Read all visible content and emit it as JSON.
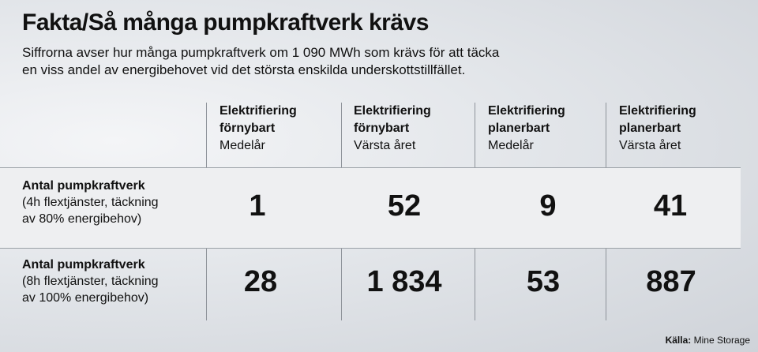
{
  "title": "Fakta/Så många pumpkraftverk krävs",
  "subtitle_line1": "Siffrorna avser hur många pumpkraftverk om 1 090 MWh som krävs för att täcka",
  "subtitle_line2": "en viss andel av energibehovet vid det största enskilda underskottstillfället.",
  "chart_data": {
    "type": "table",
    "columns": [
      {
        "line1": "Elektrifiering",
        "line2": "förnybart",
        "line3": "Medelår"
      },
      {
        "line1": "Elektrifiering",
        "line2": "förnybart",
        "line3": "Värsta året"
      },
      {
        "line1": "Elektrifiering",
        "line2": "planerbart",
        "line3": "Medelår"
      },
      {
        "line1": "Elektrifiering",
        "line2": "planerbart",
        "line3": "Värsta året"
      }
    ],
    "rows": [
      {
        "label": "Antal pumpkraftverk",
        "note1": "(4h flextjänster, täckning",
        "note2": "av 80% energibehov)",
        "values": [
          "1",
          "52",
          "9",
          "41"
        ]
      },
      {
        "label": "Antal pumpkraftverk",
        "note1": "(8h flextjänster, täckning",
        "note2": "av 100% energibehov)",
        "values": [
          "28",
          "1 834",
          "53",
          "887"
        ]
      }
    ]
  },
  "source_label": "Källa:",
  "source_value": "Mine Storage"
}
